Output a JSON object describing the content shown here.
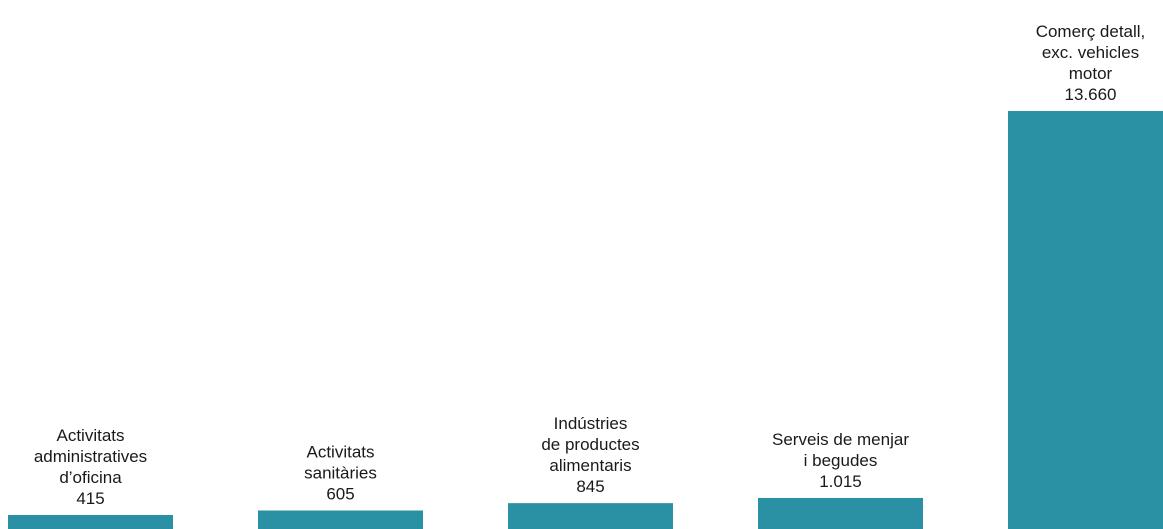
{
  "chart_data": {
    "type": "bar",
    "categories": [
      [
        "Activitats",
        "administratives",
        "d’oficina"
      ],
      [
        "Activitats",
        "sanitàries"
      ],
      [
        "Indústries",
        "de productes",
        "alimentaris"
      ],
      [
        "Serveis de menjar",
        "i begudes"
      ],
      [
        "Comerç detall,",
        "exc. vehicles",
        "motor"
      ]
    ],
    "values": [
      415,
      605,
      845,
      1015,
      13660
    ],
    "value_labels": [
      "415",
      "605",
      "845",
      "1.015",
      "13.660"
    ],
    "title": "",
    "xlabel": "",
    "ylabel": "",
    "ylim": [
      0,
      13660
    ],
    "grid": false,
    "legend": "none",
    "bar_color": "#2a90a4"
  }
}
